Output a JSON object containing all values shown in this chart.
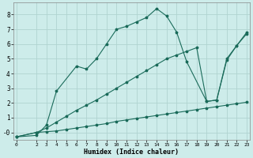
{
  "xlabel": "Humidex (Indice chaleur)",
  "background_color": "#cdecea",
  "grid_color": "#b0d4d0",
  "line_color": "#1a6b5a",
  "line1_x": [
    0,
    2,
    3,
    4,
    5,
    6,
    7,
    8,
    9,
    10,
    11,
    12,
    13,
    14,
    15,
    16,
    17,
    18,
    19,
    20,
    21,
    22,
    23
  ],
  "line1_y": [
    -0.3,
    0.0,
    0.05,
    0.1,
    0.2,
    0.3,
    0.4,
    0.5,
    0.6,
    0.75,
    0.85,
    0.95,
    1.05,
    1.15,
    1.25,
    1.35,
    1.45,
    1.55,
    1.65,
    1.75,
    1.85,
    1.95,
    2.05
  ],
  "line2_x": [
    0,
    2,
    3,
    4,
    5,
    6,
    7,
    8,
    9,
    10,
    11,
    12,
    13,
    14,
    15,
    16,
    17,
    18,
    19,
    20,
    21,
    22,
    23
  ],
  "line2_y": [
    -0.3,
    0.0,
    0.3,
    0.7,
    1.1,
    1.5,
    1.85,
    2.2,
    2.6,
    3.0,
    3.4,
    3.8,
    4.2,
    4.6,
    5.0,
    5.25,
    5.5,
    5.75,
    2.1,
    2.2,
    5.0,
    5.9,
    6.7
  ],
  "line3_x": [
    0,
    2,
    3,
    4,
    6,
    7,
    8,
    9,
    10,
    11,
    12,
    13,
    14,
    15,
    16,
    17,
    19,
    20,
    21,
    22,
    23
  ],
  "line3_y": [
    -0.3,
    -0.2,
    0.5,
    2.8,
    4.5,
    4.3,
    5.0,
    6.0,
    7.0,
    7.2,
    7.5,
    7.8,
    8.4,
    7.9,
    6.8,
    4.8,
    2.1,
    2.2,
    4.9,
    5.9,
    6.8
  ],
  "ylim": [
    -0.5,
    8.8
  ],
  "xlim": [
    -0.3,
    23.3
  ],
  "yticks": [
    0,
    1,
    2,
    3,
    4,
    5,
    6,
    7,
    8
  ],
  "ytick_labels": [
    "-0",
    "1",
    "2",
    "3",
    "4",
    "5",
    "6",
    "7",
    "8"
  ],
  "xticks": [
    0,
    2,
    3,
    4,
    5,
    6,
    7,
    8,
    9,
    10,
    11,
    12,
    13,
    14,
    15,
    16,
    17,
    18,
    19,
    20,
    21,
    22,
    23
  ],
  "figsize": [
    3.2,
    2.0
  ],
  "dpi": 100
}
